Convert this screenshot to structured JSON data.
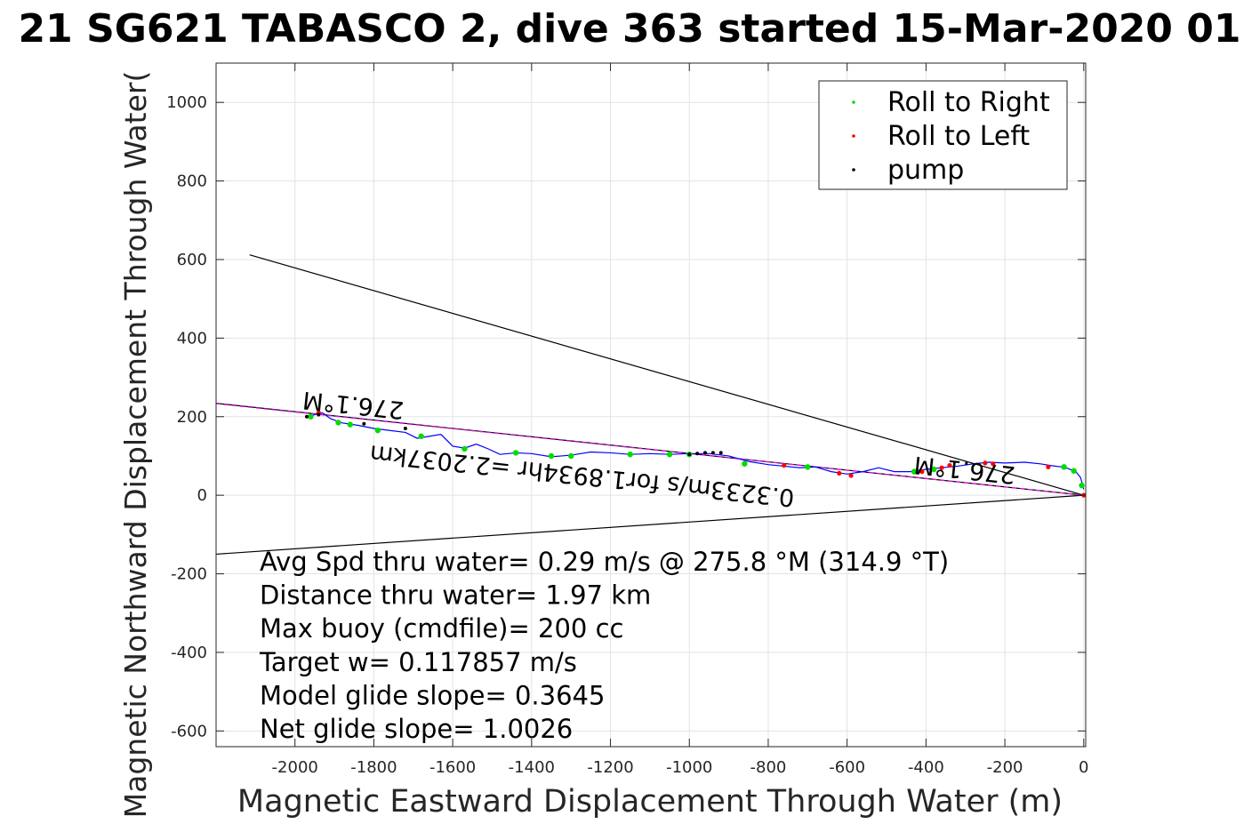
{
  "chart_data": {
    "type": "line",
    "title": "21 SG621 TABASCO 2, dive 363 started 15-Mar-2020 01",
    "xlabel": "Magnetic Eastward Displacement Through Water (m)",
    "ylabel": "Magnetic Northward Displacement Through Water(",
    "xlim": [
      -2200,
      5
    ],
    "ylim": [
      -640,
      1100
    ],
    "xticks": [
      -2000,
      -1800,
      -1600,
      -1400,
      -1200,
      -1000,
      -800,
      -600,
      -400,
      -200,
      0
    ],
    "yticks": [
      -600,
      -400,
      -200,
      0,
      200,
      400,
      600,
      800,
      1000
    ],
    "grid": true,
    "legend": {
      "placement": "top-right",
      "entries": [
        {
          "name": "Roll to Right",
          "color": "#00dd00"
        },
        {
          "name": "Roll to Left",
          "color": "#ff0000"
        },
        {
          "name": "pump",
          "color": "#000000"
        }
      ]
    },
    "track": {
      "color": "#0000ff",
      "x": [
        0,
        -8,
        -20,
        -40,
        -55,
        -80,
        -110,
        -150,
        -200,
        -240,
        -280,
        -320,
        -360,
        -400,
        -440,
        -480,
        -520,
        -560,
        -600,
        -640,
        -680,
        -720,
        -760,
        -800,
        -850,
        -900,
        -950,
        -1000,
        -1050,
        -1100,
        -1150,
        -1200,
        -1250,
        -1300,
        -1350,
        -1400,
        -1440,
        -1480,
        -1510,
        -1540,
        -1570,
        -1600,
        -1630,
        -1660,
        -1690,
        -1720,
        -1760,
        -1800,
        -1840,
        -1880,
        -1910,
        -1930,
        -1950,
        -1970
      ],
      "y": [
        15,
        45,
        60,
        68,
        72,
        75,
        80,
        84,
        82,
        84,
        80,
        74,
        70,
        66,
        60,
        60,
        70,
        60,
        54,
        60,
        72,
        70,
        74,
        78,
        86,
        100,
        106,
        106,
        104,
        106,
        104,
        108,
        110,
        102,
        98,
        106,
        108,
        104,
        118,
        130,
        120,
        125,
        155,
        150,
        145,
        160,
        165,
        170,
        178,
        184,
        195,
        210,
        205,
        200
      ]
    },
    "roll_right_points": {
      "x": [
        -5,
        -25,
        -50,
        -380,
        -430,
        -700,
        -860,
        -1000,
        -1050,
        -1150,
        -1300,
        -1350,
        -1440,
        -1570,
        -1680,
        -1790,
        -1860,
        -1890,
        -1960
      ],
      "y": [
        25,
        62,
        72,
        66,
        60,
        72,
        80,
        104,
        104,
        104,
        100,
        100,
        108,
        118,
        150,
        165,
        180,
        185,
        200
      ]
    },
    "roll_left_points": {
      "x": [
        0,
        -90,
        -230,
        -250,
        -340,
        -360,
        -410,
        -590,
        -620,
        -760,
        -1940
      ],
      "y": [
        0,
        72,
        80,
        82,
        76,
        70,
        60,
        50,
        56,
        76,
        210
      ]
    },
    "pump_points": {
      "x": [
        -920,
        -940,
        -960,
        -980,
        -1000,
        -1720,
        -1825,
        -1940,
        -1970
      ],
      "y": [
        108,
        108,
        108,
        106,
        104,
        170,
        182,
        205,
        200
      ]
    },
    "lines": [
      {
        "color": "#000000",
        "x": [
          -2115,
          0
        ],
        "y": [
          612,
          0
        ]
      },
      {
        "color": "#000000",
        "x": [
          -2200,
          0
        ],
        "y": [
          -150,
          0
        ]
      },
      {
        "color": "#000000",
        "x": [
          -2200,
          0
        ],
        "y": [
          234,
          0
        ]
      },
      {
        "color": "#ff00ff",
        "x": [
          -2200,
          0
        ],
        "y": [
          233,
          0
        ],
        "dashed": true
      }
    ],
    "rotated_labels": [
      {
        "text": "276.1°M",
        "x": -1850,
        "y": 250,
        "angle": 186
      },
      {
        "text": "276.1°M",
        "x": -300,
        "y": 85,
        "angle": 186
      },
      {
        "text": "0.3233m/s for1.8934hr =2.2037km",
        "x": -1270,
        "y": 70,
        "angle": 186
      }
    ],
    "annotations": [
      "Avg Spd thru water=  0.29 m/s @ 275.8 °M (314.9 °T)",
      "Distance thru water=  1.97 km",
      "Max buoy (cmdfile)= 200 cc",
      "Target w= 0.117857 m/s",
      "Model glide slope= 0.3645",
      "Net glide slope= 1.0026"
    ]
  }
}
